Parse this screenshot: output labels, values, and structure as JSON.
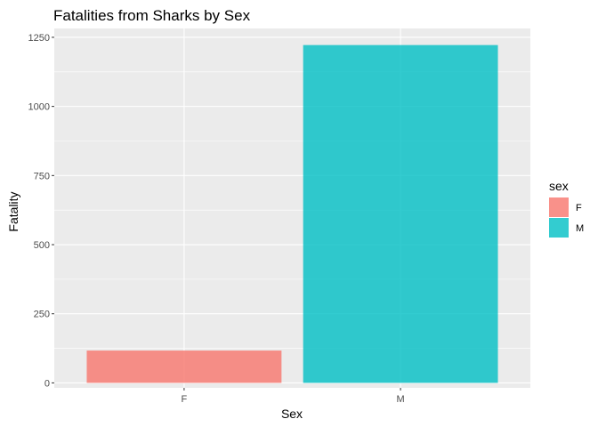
{
  "chart_data": {
    "type": "bar",
    "title": "Fatalities from Sharks by Sex",
    "xlabel": "Sex",
    "ylabel": "Fatality",
    "categories": [
      "F",
      "M"
    ],
    "values": [
      117,
      1222
    ],
    "ylim": [
      -18,
      1282
    ],
    "yticks": [
      0,
      250,
      500,
      750,
      1000,
      1250
    ],
    "ytick_labels": [
      "0",
      "250",
      "500",
      "750",
      "1000",
      "1250"
    ],
    "colors": [
      "#F8766D",
      "#00BFC4"
    ],
    "grid": true,
    "panel_background": "#EBEBEB",
    "legend": {
      "title": "sex",
      "position": "right",
      "entries": [
        {
          "label": "F",
          "color": "#F8766D"
        },
        {
          "label": "M",
          "color": "#00BFC4"
        }
      ]
    }
  }
}
